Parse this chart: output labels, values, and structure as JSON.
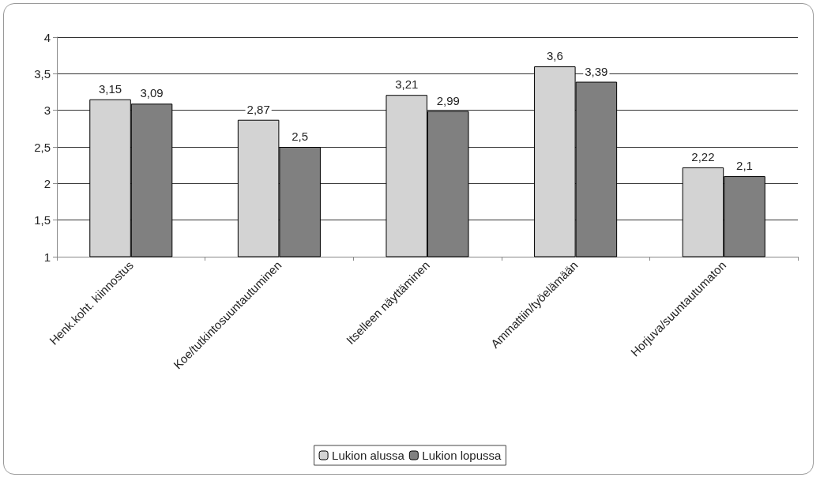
{
  "chart_data": {
    "type": "bar",
    "categories": [
      "Henk.koht. kiinnostus",
      "Koe/tutkintosuuntautuminen",
      "Itselleen näyttäminen",
      "Ammattiin/työelämään",
      "Horjuva/suuntautumaton"
    ],
    "series": [
      {
        "name": "Lukion alussa",
        "color": "#d3d3d3",
        "values": [
          3.15,
          2.87,
          3.21,
          3.6,
          2.22
        ],
        "value_labels": [
          "3,15",
          "2,87",
          "3,21",
          "3,6",
          "2,22"
        ]
      },
      {
        "name": "Lukion lopussa",
        "color": "#808080",
        "values": [
          3.09,
          2.5,
          2.99,
          3.39,
          2.1
        ],
        "value_labels": [
          "3,09",
          "2,5",
          "2,99",
          "3,39",
          "2,1"
        ]
      }
    ],
    "ylim": [
      1,
      4
    ],
    "yticks": [
      1,
      {
        "value": 1.5,
        "label": "1,5"
      },
      2,
      {
        "value": 2.5,
        "label": "2,5"
      },
      3,
      {
        "value": 3.5,
        "label": "3,5"
      },
      4
    ],
    "grid": "y",
    "legend": "bottom"
  }
}
